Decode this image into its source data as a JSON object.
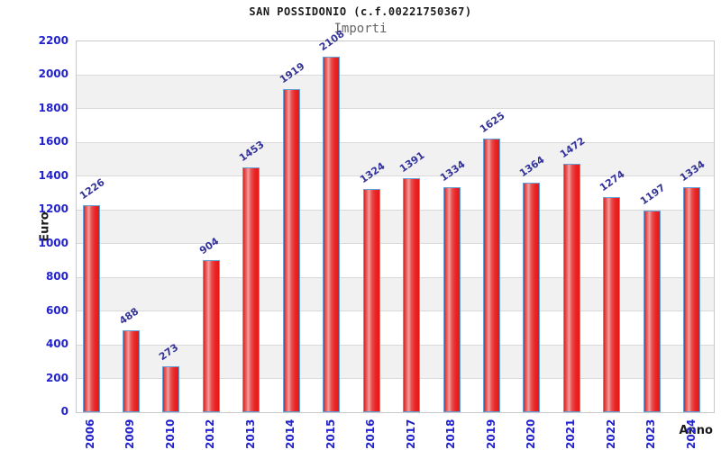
{
  "header": {
    "title": "SAN POSSIDONIO (c.f.00221750367)",
    "subtitle": "Importi"
  },
  "chart_data": {
    "type": "bar",
    "title": "SAN POSSIDONIO (c.f.00221750367)",
    "subtitle": "Importi",
    "xlabel": "Anno",
    "ylabel": "Euro",
    "categories": [
      "2006",
      "2009",
      "2010",
      "2012",
      "2013",
      "2014",
      "2015",
      "2016",
      "2017",
      "2018",
      "2019",
      "2020",
      "2021",
      "2022",
      "2023",
      "2024"
    ],
    "values": [
      1226,
      488,
      273,
      904,
      1453,
      1919,
      2108,
      1324,
      1391,
      1334,
      1625,
      1364,
      1472,
      1274,
      1197,
      1334
    ],
    "ylim": [
      0,
      2200
    ],
    "yticks": [
      0,
      200,
      400,
      600,
      800,
      1000,
      1200,
      1400,
      1600,
      1800,
      2000,
      2200
    ],
    "grid": "horizontal gridlines every 200 with alternating white/grey bands",
    "legend": "none",
    "colors": {
      "bar_fill_main": "#e62626",
      "bar_highlight": "#f5a0a0",
      "bar_border": "#63a0d8",
      "axis_tick_label": "#2222cc",
      "value_label": "#333399",
      "band_grey": "#f1f1f1",
      "gridline": "#d9d9d9",
      "title_color": "#1a1a1a",
      "subtitle_color": "#666666"
    }
  }
}
